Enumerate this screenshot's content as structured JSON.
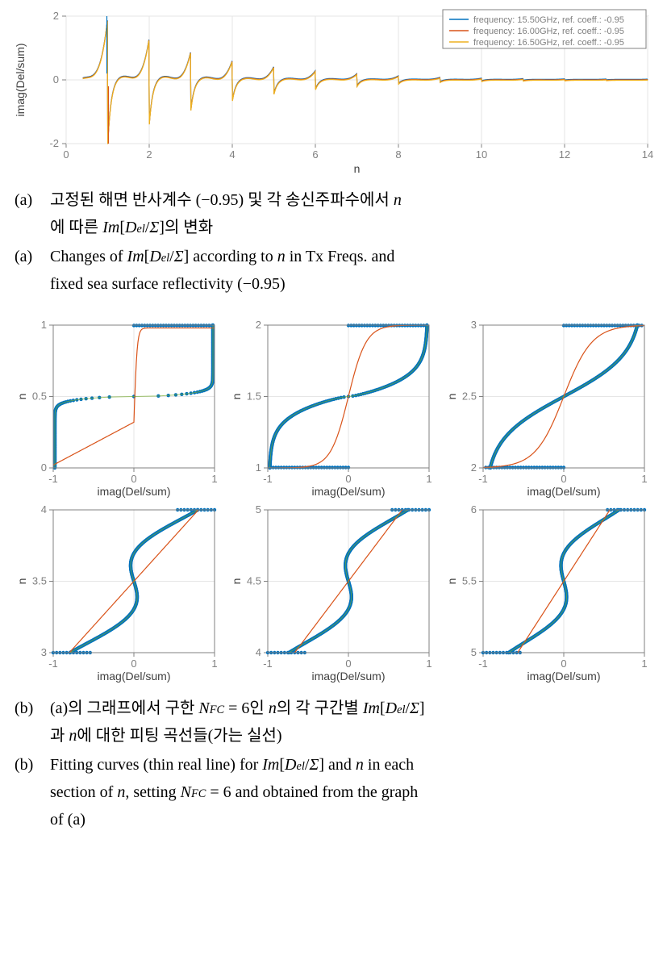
{
  "topChart": {
    "type": "line",
    "xlabel": "n",
    "ylabel": "imag(Del/sum)",
    "xlim": [
      0,
      14
    ],
    "ylim": [
      -2,
      2
    ],
    "xticks": [
      0,
      2,
      4,
      6,
      8,
      10,
      12,
      14
    ],
    "yticks": [
      -2,
      0,
      2
    ],
    "background": "#ffffff",
    "plotbg": "#ffffff",
    "grid_color": "#e6e6e6",
    "axis_color": "#808080",
    "tick_fontsize": 13,
    "label_fontsize": 14,
    "legend_fontsize": 11,
    "legend_pos": "top-right",
    "legend_border": "#808080",
    "series": [
      {
        "label": "frequency: 15.50GHz, ref. coeff.: -0.95",
        "color": "#0072bd",
        "width": 1.2
      },
      {
        "label": "frequency: 16.00GHz, ref. coeff.: -0.95",
        "color": "#d95319",
        "width": 1.2
      },
      {
        "label": "frequency: 16.50GHz, ref. coeff.: -0.95",
        "color": "#edb120",
        "width": 1.2
      }
    ],
    "curve": {
      "note": "damped oscillation; asymmetric spikes near integer n ≤ ~7, decaying to ~0",
      "peaks_n": [
        1,
        2,
        3,
        4,
        5,
        6,
        7
      ],
      "peak_hi": [
        2.0,
        1.35,
        0.95,
        0.75,
        0.55,
        0.4,
        0.25
      ],
      "peak_lo": [
        -2.0,
        -1.35,
        -0.95,
        -0.75,
        -0.55,
        -0.4,
        -0.25
      ]
    }
  },
  "caption_a_ko_label": "(a)",
  "caption_a_ko": "고정된 해면 반사계수 (−0.95) 및 각 송신주파수에서 n에 따른 Im[Dₑₗ/Σ]의 변화",
  "caption_a_en_label": "(a)",
  "caption_a_en": "Changes of Im[Dₑₗ/Σ] according to n in Tx Freqs. and fixed sea surface reflectivity (−0.95)",
  "subplots": {
    "common": {
      "xlabel": "imag(Del/sum)",
      "ylabel": "n",
      "xlim": [
        -1,
        1
      ],
      "xticks": [
        -1,
        0,
        1
      ],
      "data_color": "#0072bd",
      "fit_color": "#d95319",
      "overlay_color": "#77ac30",
      "grid_color": "#e6e6e6",
      "axis_color": "#808080",
      "background": "#ffffff",
      "tick_fontsize": 13,
      "label_fontsize": 14,
      "marker": "dot",
      "marker_size": 2.2,
      "fit_linewidth": 1.2
    },
    "panels": [
      {
        "ylim": [
          0,
          1
        ],
        "yticks": [
          0,
          0.5,
          1
        ],
        "shape": "sigmoid-steep"
      },
      {
        "ylim": [
          1,
          2
        ],
        "yticks": [
          1,
          1.5,
          2
        ],
        "shape": "sigmoid-mid"
      },
      {
        "ylim": [
          2,
          3
        ],
        "yticks": [
          2,
          2.5,
          3
        ],
        "shape": "sigmoid-soft"
      },
      {
        "ylim": [
          3,
          4
        ],
        "yticks": [
          3,
          3.5,
          4
        ],
        "shape": "s-fold"
      },
      {
        "ylim": [
          4,
          5
        ],
        "yticks": [
          4,
          4.5,
          5
        ],
        "shape": "s-fold"
      },
      {
        "ylim": [
          5,
          6
        ],
        "yticks": [
          5,
          5.5,
          6
        ],
        "shape": "s-fold"
      }
    ]
  },
  "caption_b_ko_label": "(b)",
  "caption_b_ko": "(a)의 그래프에서 구한 N_FC = 6인 n의 각 구간별 Im[Dₑₗ/Σ]과 n에 대한 피팅 곡선들(가는 실선)",
  "caption_b_en_label": "(b)",
  "caption_b_en": "Fitting curves (thin real line) for Im[Dₑₗ/Σ] and n in each section of n, setting N_FC = 6 and obtained from the graph of (a)"
}
